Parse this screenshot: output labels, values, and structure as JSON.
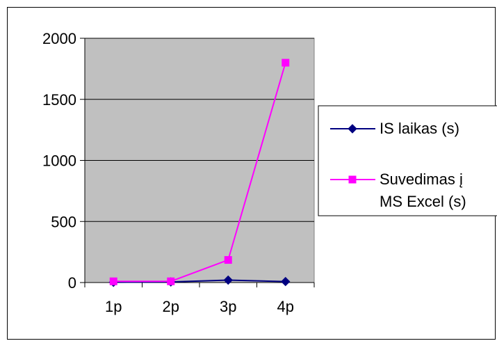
{
  "chart_data": {
    "type": "line",
    "title": "",
    "xlabel": "",
    "ylabel": "",
    "categories": [
      "1p",
      "2p",
      "3p",
      "4p"
    ],
    "ylim": [
      0,
      2000
    ],
    "yticks": [
      0,
      500,
      1000,
      1500,
      2000
    ],
    "y_tick_labels": [
      "0",
      "500",
      "1000",
      "1500",
      "2000"
    ],
    "grid": "horizontal",
    "plot_background": "#c0c0c0",
    "legend_position": "right",
    "series": [
      {
        "name": "IS laikas (s)",
        "legend_lines": [
          "IS laikas (s)"
        ],
        "values": [
          2,
          5,
          20,
          8
        ],
        "color": "#000080",
        "marker": "diamond"
      },
      {
        "name": "Suvedimas į MS Excel (s)",
        "legend_lines": [
          "Suvedimas į",
          "MS Excel (s)"
        ],
        "values": [
          10,
          10,
          185,
          1800
        ],
        "color": "#ff00ff",
        "marker": "square"
      }
    ]
  }
}
